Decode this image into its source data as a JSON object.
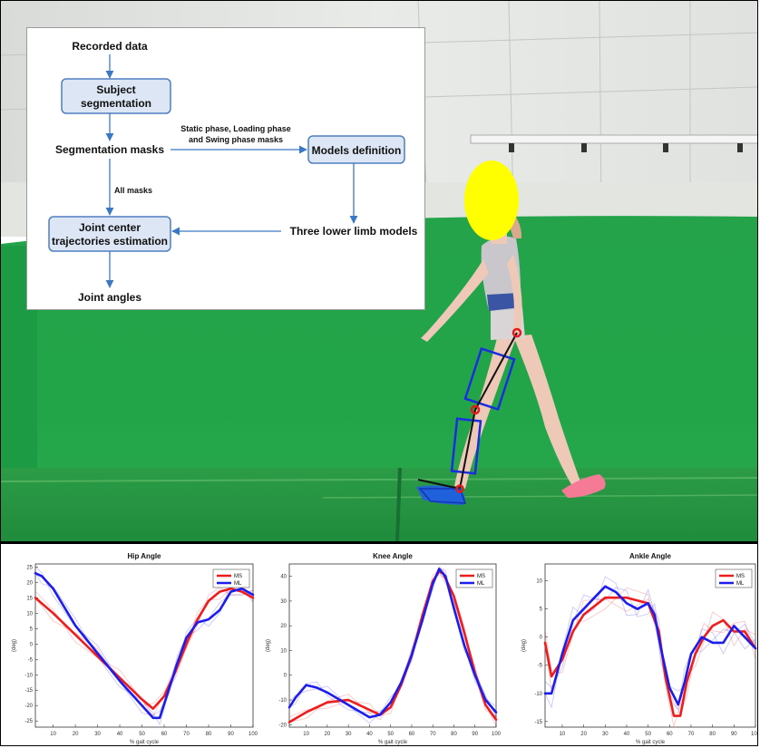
{
  "flowchart": {
    "recorded": "Recorded data",
    "subject_seg": [
      "Subject",
      "segmentation"
    ],
    "seg_masks": "Segmentation masks",
    "static_note": [
      "Static phase, Loading phase",
      "and Swing phase masks"
    ],
    "models_def": "Models definition",
    "all_masks": "All masks",
    "joint_center": [
      "Joint center",
      "trajectories estimation"
    ],
    "three_models": "Three lower limb models",
    "joint_angles": "Joint angles"
  },
  "colors": {
    "green_screen": "#1fa64a",
    "box_fill": "#dce6f4",
    "box_border": "#4f7fc1",
    "arrow": "#3b78c4",
    "ms": "#ee1c1c",
    "ml": "#1c1cee",
    "face_blur": "#ffff00"
  },
  "chart_data": [
    {
      "type": "line",
      "title": "Hip Angle",
      "xlabel": "% gait cycle",
      "ylabel": "(deg)",
      "xlim": [
        2,
        100
      ],
      "ylim": [
        -27,
        26
      ],
      "xticks": [
        10,
        20,
        30,
        40,
        50,
        60,
        70,
        80,
        90,
        100
      ],
      "yticks": [
        25,
        20,
        15,
        10,
        5,
        0,
        -5,
        -10,
        -15,
        -20,
        -25
      ],
      "legend": "top-right",
      "series": [
        {
          "name": "MS",
          "x": [
            2,
            10,
            20,
            30,
            40,
            50,
            55,
            60,
            65,
            70,
            75,
            80,
            85,
            90,
            95,
            100
          ],
          "y": [
            15,
            10,
            3,
            -4,
            -11,
            -18,
            -21,
            -17,
            -9,
            0,
            8,
            14,
            17,
            18,
            17,
            15
          ]
        },
        {
          "name": "ML",
          "x": [
            2,
            5,
            10,
            20,
            30,
            40,
            50,
            55,
            58,
            62,
            66,
            70,
            75,
            80,
            85,
            90,
            95,
            100
          ],
          "y": [
            23,
            22,
            18,
            6,
            -3,
            -12,
            -20,
            -24,
            -24,
            -15,
            -6,
            2,
            7,
            8,
            11,
            17,
            18,
            16
          ]
        }
      ]
    },
    {
      "type": "line",
      "title": "Knee Angle",
      "xlabel": "% gait cycle",
      "ylabel": "(deg)",
      "xlim": [
        2,
        100
      ],
      "ylim": [
        -21,
        45
      ],
      "xticks": [
        10,
        20,
        30,
        40,
        50,
        60,
        70,
        80,
        90,
        100
      ],
      "yticks": [
        40,
        30,
        20,
        10,
        0,
        -10,
        -20
      ],
      "legend": "top-right",
      "series": [
        {
          "name": "MS",
          "x": [
            2,
            10,
            20,
            30,
            40,
            45,
            50,
            55,
            60,
            65,
            70,
            73,
            75,
            80,
            85,
            90,
            95,
            100
          ],
          "y": [
            -19,
            -15,
            -11,
            -10,
            -14,
            -16,
            -13,
            -4,
            8,
            24,
            38,
            42,
            41,
            32,
            17,
            1,
            -12,
            -18
          ]
        },
        {
          "name": "ML",
          "x": [
            2,
            5,
            10,
            15,
            20,
            30,
            40,
            45,
            50,
            55,
            60,
            65,
            70,
            73,
            76,
            80,
            85,
            90,
            95,
            100
          ],
          "y": [
            -13,
            -9,
            -4,
            -5,
            -7,
            -12,
            -17,
            -16,
            -11,
            -3,
            8,
            22,
            37,
            43,
            40,
            27,
            12,
            0,
            -10,
            -15
          ]
        }
      ]
    },
    {
      "type": "line",
      "title": "Ankle Angle",
      "xlabel": "% gait cycle",
      "ylabel": "(deg)",
      "xlim": [
        2,
        100
      ],
      "ylim": [
        -16,
        13
      ],
      "xticks": [
        10,
        20,
        30,
        40,
        50,
        60,
        70,
        80,
        90,
        100
      ],
      "yticks": [
        10,
        5,
        0,
        -5,
        -10,
        -15
      ],
      "legend": "top-right",
      "series": [
        {
          "name": "MS",
          "x": [
            2,
            5,
            10,
            15,
            20,
            30,
            40,
            50,
            55,
            58,
            62,
            65,
            68,
            72,
            76,
            80,
            85,
            90,
            95,
            100
          ],
          "y": [
            -1,
            -7,
            -4,
            1,
            4,
            7,
            7,
            6,
            1,
            -7,
            -14,
            -14,
            -8,
            -3,
            0,
            2,
            3,
            1,
            1,
            -2
          ]
        },
        {
          "name": "ML",
          "x": [
            2,
            5,
            10,
            15,
            20,
            25,
            30,
            35,
            40,
            45,
            50,
            53,
            56,
            60,
            64,
            67,
            70,
            75,
            80,
            85,
            90,
            95,
            100
          ],
          "y": [
            -10,
            -10,
            -3,
            3,
            5,
            7,
            9,
            8,
            6,
            5,
            6,
            4,
            -2,
            -9,
            -12,
            -8,
            -3,
            0,
            -1,
            -1,
            2,
            0,
            -2
          ]
        }
      ]
    }
  ]
}
